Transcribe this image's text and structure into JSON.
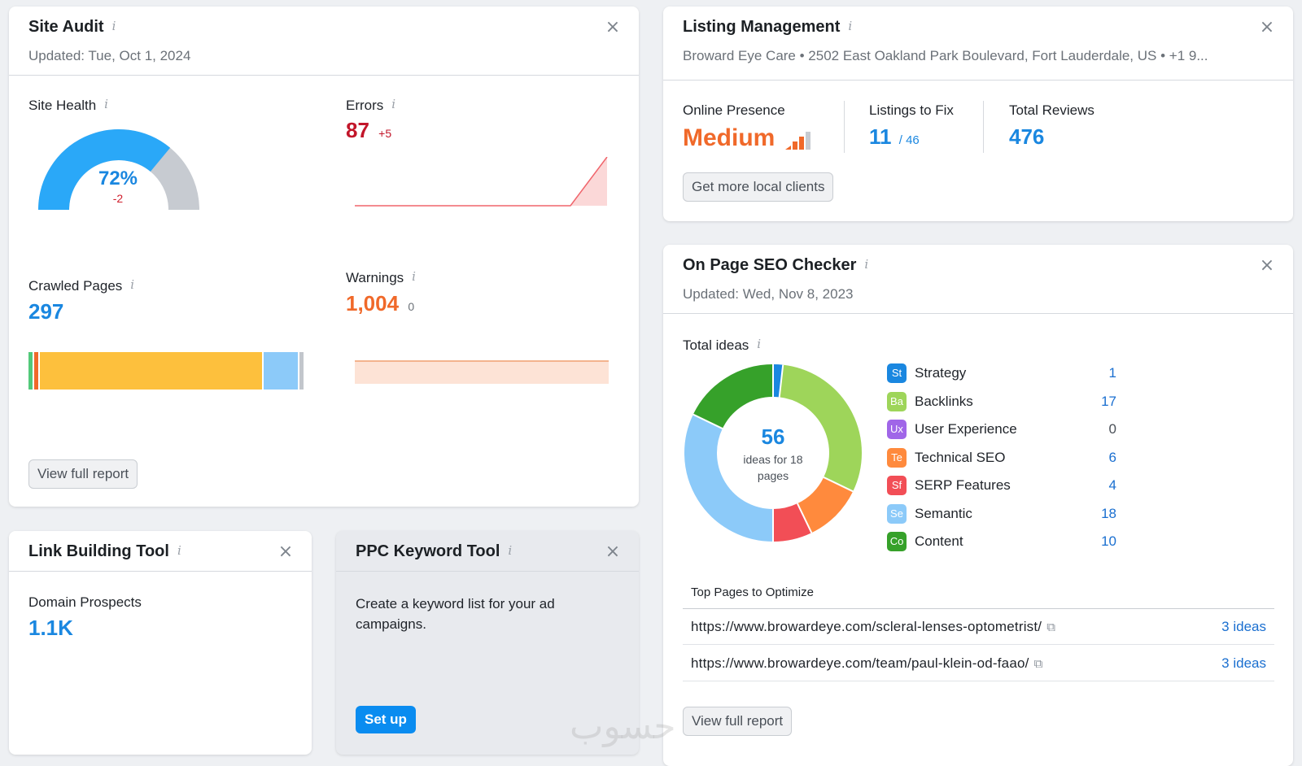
{
  "site_audit": {
    "title": "Site Audit",
    "updated": "Updated: Tue, Oct 1, 2024",
    "site_health": {
      "label": "Site Health",
      "value": "72%",
      "change": "-2",
      "percent": 72
    },
    "errors": {
      "label": "Errors",
      "value": "87",
      "change": "+5"
    },
    "crawled": {
      "label": "Crawled Pages",
      "value": "297",
      "segments": [
        {
          "color": "#52c97a",
          "fraction": 0.02
        },
        {
          "color": "#f0692a",
          "fraction": 0.02
        },
        {
          "color": "#fdc03d",
          "fraction": 0.81
        },
        {
          "color": "#8ccaf9",
          "fraction": 0.13
        },
        {
          "color": "#c2c6cc",
          "fraction": 0.02
        }
      ]
    },
    "warnings": {
      "label": "Warnings",
      "value": "1,004",
      "change": "0"
    },
    "button": "View full report"
  },
  "listing": {
    "title": "Listing Management",
    "address": "Broward Eye Care • 2502 East Oakland Park Boulevard, Fort Lauderdale, US • +1 9...",
    "presence_label": "Online Presence",
    "presence_value": "Medium",
    "fix_label": "Listings to Fix",
    "fix_value": "11",
    "fix_total": "/ 46",
    "reviews_label": "Total Reviews",
    "reviews_value": "476",
    "button": "Get more local clients"
  },
  "onpage": {
    "title": "On Page SEO Checker",
    "updated": "Updated: Wed, Nov 8, 2023",
    "total_label": "Total ideas",
    "total_value": "56",
    "total_caption_1": "ideas for 18",
    "total_caption_2": "pages",
    "categories": [
      {
        "abbr": "St",
        "label": "Strategy",
        "value": "1",
        "color": "#1a87e0"
      },
      {
        "abbr": "Ba",
        "label": "Backlinks",
        "value": "17",
        "color": "#9ed55a"
      },
      {
        "abbr": "Ux",
        "label": "User Experience",
        "value": "0",
        "color": "#a066e8"
      },
      {
        "abbr": "Te",
        "label": "Technical SEO",
        "value": "6",
        "color": "#ff8a3d"
      },
      {
        "abbr": "Sf",
        "label": "SERP Features",
        "value": "4",
        "color": "#f24e56"
      },
      {
        "abbr": "Se",
        "label": "Semantic",
        "value": "18",
        "color": "#8ccaf9"
      },
      {
        "abbr": "Co",
        "label": "Content",
        "value": "10",
        "color": "#36a12a"
      }
    ],
    "top_pages_label": "Top Pages to Optimize",
    "pages": [
      {
        "url": "https://www.browardeye.com/scleral-lenses-optometrist/",
        "ideas": "3 ideas"
      },
      {
        "url": "https://www.browardeye.com/team/paul-klein-od-faao/",
        "ideas": "3 ideas"
      }
    ],
    "button": "View full report"
  },
  "link_building": {
    "title": "Link Building Tool",
    "label": "Domain Prospects",
    "value": "1.1K"
  },
  "ppc": {
    "title": "PPC Keyword Tool",
    "text_1": "Create a keyword list for your ad",
    "text_2": "campaigns.",
    "button": "Set up"
  },
  "watermark": "حسوب"
}
